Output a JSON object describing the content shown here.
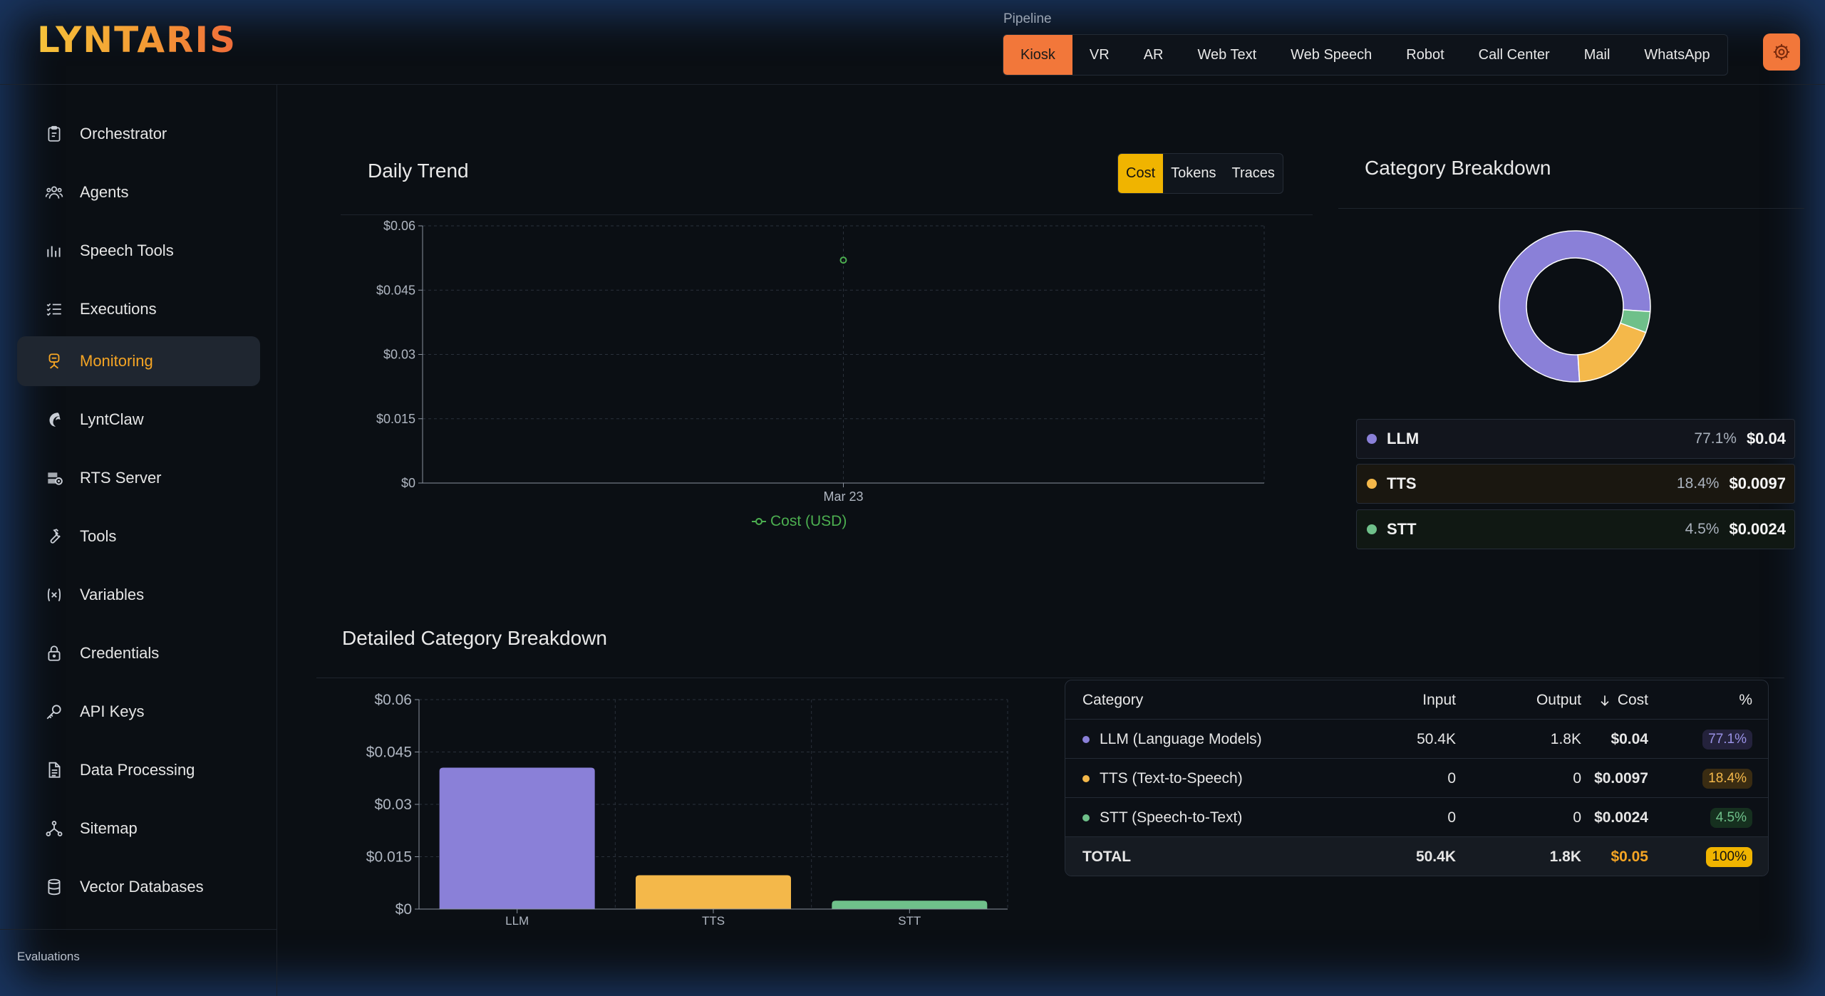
{
  "app": {
    "logo": "LYNTARIS"
  },
  "pipeline": {
    "label": "Pipeline",
    "tabs": [
      "Kiosk",
      "VR",
      "AR",
      "Web Text",
      "Web Speech",
      "Robot",
      "Call Center",
      "Mail",
      "WhatsApp"
    ],
    "active": "Kiosk"
  },
  "sidebar": {
    "items": [
      {
        "label": "Orchestrator",
        "icon": "clipboard-icon"
      },
      {
        "label": "Agents",
        "icon": "users-icon"
      },
      {
        "label": "Speech Tools",
        "icon": "audio-bars-icon"
      },
      {
        "label": "Executions",
        "icon": "list-check-icon"
      },
      {
        "label": "Monitoring",
        "icon": "monitor-icon",
        "active": true
      },
      {
        "label": "LyntClaw",
        "icon": "claw-icon"
      },
      {
        "label": "RTS Server",
        "icon": "server-gear-icon"
      },
      {
        "label": "Tools",
        "icon": "wrench-icon"
      },
      {
        "label": "Variables",
        "icon": "variable-icon"
      },
      {
        "label": "Credentials",
        "icon": "lock-icon"
      },
      {
        "label": "API Keys",
        "icon": "key-icon"
      },
      {
        "label": "Data Processing",
        "icon": "document-icon"
      },
      {
        "label": "Sitemap",
        "icon": "sitemap-icon"
      },
      {
        "label": "Vector Databases",
        "icon": "database-icon"
      }
    ],
    "section_label": "Evaluations"
  },
  "daily_trend": {
    "title": "Daily Trend",
    "tabs": [
      "Cost",
      "Tokens",
      "Traces"
    ],
    "active_tab": "Cost"
  },
  "category_breakdown": {
    "title": "Category Breakdown",
    "items": [
      {
        "name": "LLM",
        "pct": "77.1%",
        "cost": "$0.04",
        "color": "#8a80d8"
      },
      {
        "name": "TTS",
        "pct": "18.4%",
        "cost": "$0.0097",
        "color": "#f4b84a"
      },
      {
        "name": "STT",
        "pct": "4.5%",
        "cost": "$0.0024",
        "color": "#6fc08a"
      }
    ]
  },
  "detailed": {
    "title": "Detailed Category Breakdown",
    "table": {
      "headers": {
        "category": "Category",
        "input": "Input",
        "output": "Output",
        "cost": "Cost",
        "pct": "%"
      },
      "sort_icon": "arrow-down-icon",
      "rows": [
        {
          "category": "LLM (Language Models)",
          "input": "50.4K",
          "output": "1.8K",
          "cost": "$0.04",
          "pct": "77.1%",
          "color": "#8a80d8"
        },
        {
          "category": "TTS (Text-to-Speech)",
          "input": "0",
          "output": "0",
          "cost": "$0.0097",
          "pct": "18.4%",
          "color": "#f4b84a"
        },
        {
          "category": "STT (Speech-to-Text)",
          "input": "0",
          "output": "0",
          "cost": "$0.0024",
          "pct": "4.5%",
          "color": "#6fc08a"
        }
      ],
      "total": {
        "label": "TOTAL",
        "input": "50.4K",
        "output": "1.8K",
        "cost": "$0.05",
        "pct": "100%"
      }
    }
  },
  "colors": {
    "accent": "#f2773a",
    "highlight": "#f5a524",
    "llm": "#8a80d8",
    "tts": "#f4b84a",
    "stt": "#6fc08a",
    "trend": "#4caf50"
  },
  "chart_data": [
    {
      "type": "line",
      "x": [
        "Mar 23"
      ],
      "series": [
        {
          "name": "Cost (USD)",
          "values": [
            0.052
          ]
        }
      ],
      "yticks": [
        "$0",
        "$0.015",
        "$0.03",
        "$0.045",
        "$0.06"
      ],
      "ylim": [
        0,
        0.06
      ],
      "grid": true,
      "legend": "bottom"
    },
    {
      "type": "pie",
      "categories": [
        "LLM",
        "TTS",
        "STT"
      ],
      "values": [
        77.1,
        18.4,
        4.5
      ]
    },
    {
      "type": "bar",
      "categories": [
        "LLM",
        "TTS",
        "STT"
      ],
      "values": [
        0.0405,
        0.0097,
        0.0024
      ],
      "yticks": [
        "$0",
        "$0.015",
        "$0.03",
        "$0.045",
        "$0.06"
      ],
      "ylim": [
        0,
        0.06
      ],
      "grid": true
    }
  ]
}
